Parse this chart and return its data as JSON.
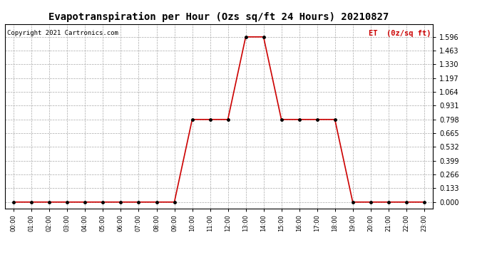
{
  "title": "Evapotranspiration per Hour (Ozs sq/ft 24 Hours) 20210827",
  "copyright_text": "Copyright 2021 Cartronics.com",
  "legend_label": "ET  (0z/sq ft)",
  "background_color": "#ffffff",
  "plot_bg_color": "#ffffff",
  "line_color": "#cc0000",
  "marker_color": "#000000",
  "grid_color": "#aaaaaa",
  "title_fontsize": 10,
  "copyright_fontsize": 6.5,
  "legend_fontsize": 7.5,
  "ytick_fontsize": 7,
  "xtick_fontsize": 6,
  "hours": [
    0,
    1,
    2,
    3,
    4,
    5,
    6,
    7,
    8,
    9,
    10,
    11,
    12,
    13,
    14,
    15,
    16,
    17,
    18,
    19,
    20,
    21,
    22,
    23
  ],
  "values": [
    0.0,
    0.0,
    0.0,
    0.0,
    0.0,
    0.0,
    0.0,
    0.0,
    0.0,
    0.0,
    0.798,
    0.798,
    0.798,
    1.596,
    1.596,
    0.798,
    0.798,
    0.798,
    0.798,
    0.0,
    0.0,
    0.0,
    0.0,
    0.0
  ],
  "yticks": [
    0.0,
    0.133,
    0.266,
    0.399,
    0.532,
    0.665,
    0.798,
    0.931,
    1.064,
    1.197,
    1.33,
    1.463,
    1.596
  ],
  "ylim": [
    -0.06,
    1.72
  ],
  "xlim": [
    -0.5,
    23.5
  ],
  "xtick_labels": [
    "00:00",
    "01:00",
    "02:00",
    "03:00",
    "04:00",
    "05:00",
    "06:00",
    "07:00",
    "08:00",
    "09:00",
    "10:00",
    "11:00",
    "12:00",
    "13:00",
    "14:00",
    "15:00",
    "16:00",
    "17:00",
    "18:00",
    "19:00",
    "20:00",
    "21:00",
    "22:00",
    "23:00"
  ]
}
